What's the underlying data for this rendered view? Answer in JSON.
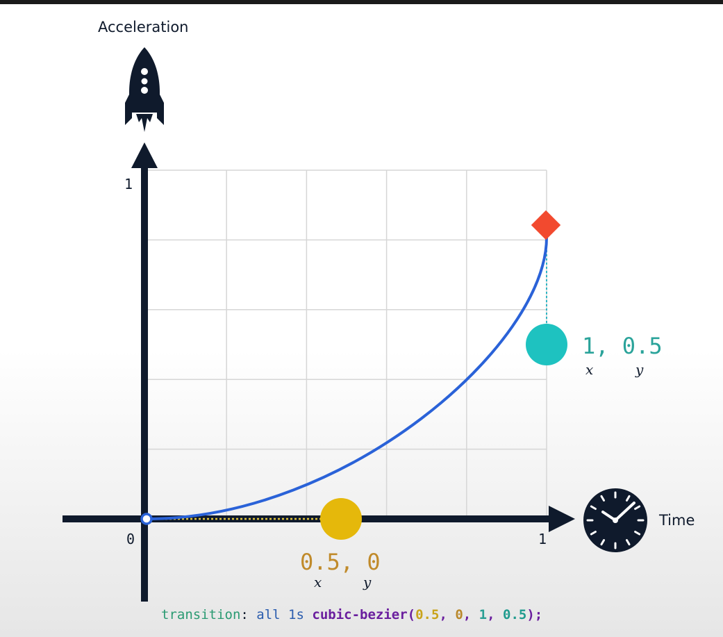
{
  "labels": {
    "y_axis": "Acceleration",
    "x_axis": "Time",
    "y_max": "1",
    "x_max": "1",
    "origin": "0"
  },
  "control_points": {
    "p1": {
      "text": "0.5, 0",
      "x_sub": "x",
      "y_sub": "y",
      "x": 0.5,
      "y": 0,
      "color": "#e5b80b"
    },
    "p2": {
      "text": "1, 0.5",
      "x_sub": "x",
      "y_sub": "y",
      "x": 1,
      "y": 0.5,
      "color": "#1ec2c0"
    }
  },
  "curve": {
    "start": [
      0,
      0
    ],
    "end": [
      1,
      1
    ],
    "color": "#2a62d8",
    "end_marker_color": "#f24a2f"
  },
  "code": {
    "prop": "transition",
    "colon": ":",
    "values": "all 1s",
    "fn": "cubic-bezier(",
    "a1": "0.5",
    "a2": "0",
    "a3": "1",
    "a4": "0.5",
    "close": ");",
    "comma": ", "
  },
  "icons": {
    "rocket": "rocket-icon",
    "clock": "clock-icon"
  },
  "colors": {
    "axis": "#0f1a2c",
    "grid": "#d6d6d6"
  }
}
